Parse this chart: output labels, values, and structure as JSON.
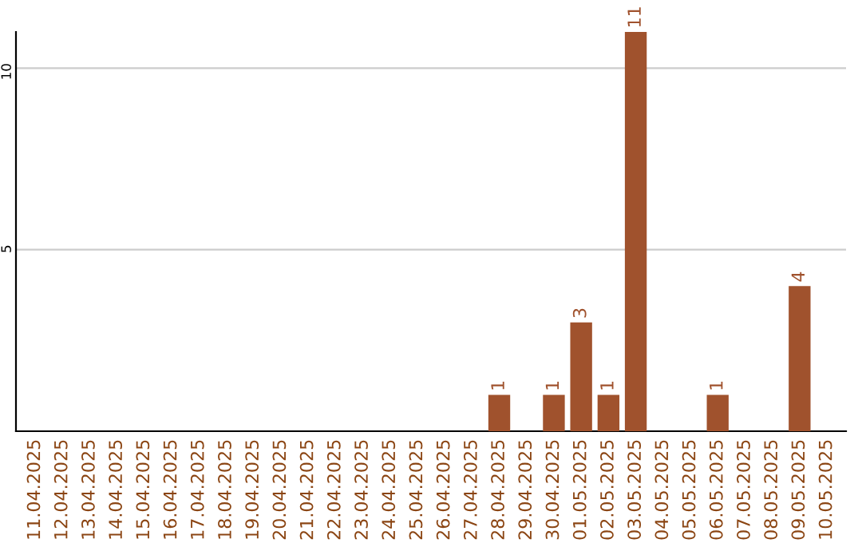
{
  "chart_data": {
    "type": "bar",
    "categories": [
      "11.04.2025",
      "12.04.2025",
      "13.04.2025",
      "14.04.2025",
      "15.04.2025",
      "16.04.2025",
      "17.04.2025",
      "18.04.2025",
      "19.04.2025",
      "20.04.2025",
      "21.04.2025",
      "22.04.2025",
      "23.04.2025",
      "24.04.2025",
      "25.04.2025",
      "26.04.2025",
      "27.04.2025",
      "28.04.2025",
      "29.04.2025",
      "30.04.2025",
      "01.05.2025",
      "02.05.2025",
      "03.05.2025",
      "04.05.2025",
      "05.05.2025",
      "06.05.2025",
      "07.05.2025",
      "08.05.2025",
      "09.05.2025",
      "10.05.2025"
    ],
    "values": [
      0,
      0,
      0,
      0,
      0,
      0,
      0,
      0,
      0,
      0,
      0,
      0,
      0,
      0,
      0,
      0,
      0,
      1,
      0,
      1,
      3,
      1,
      11,
      0,
      0,
      1,
      0,
      0,
      4,
      0
    ],
    "value_labels": [
      null,
      null,
      null,
      null,
      null,
      null,
      null,
      null,
      null,
      null,
      null,
      null,
      null,
      null,
      null,
      null,
      null,
      "1",
      null,
      "1",
      "3",
      "1",
      "11",
      null,
      null,
      "1",
      null,
      null,
      "4",
      null
    ],
    "color": "#a0522d",
    "ylim": [
      0,
      11
    ],
    "yticks": [
      5,
      10
    ],
    "grid": "y"
  }
}
